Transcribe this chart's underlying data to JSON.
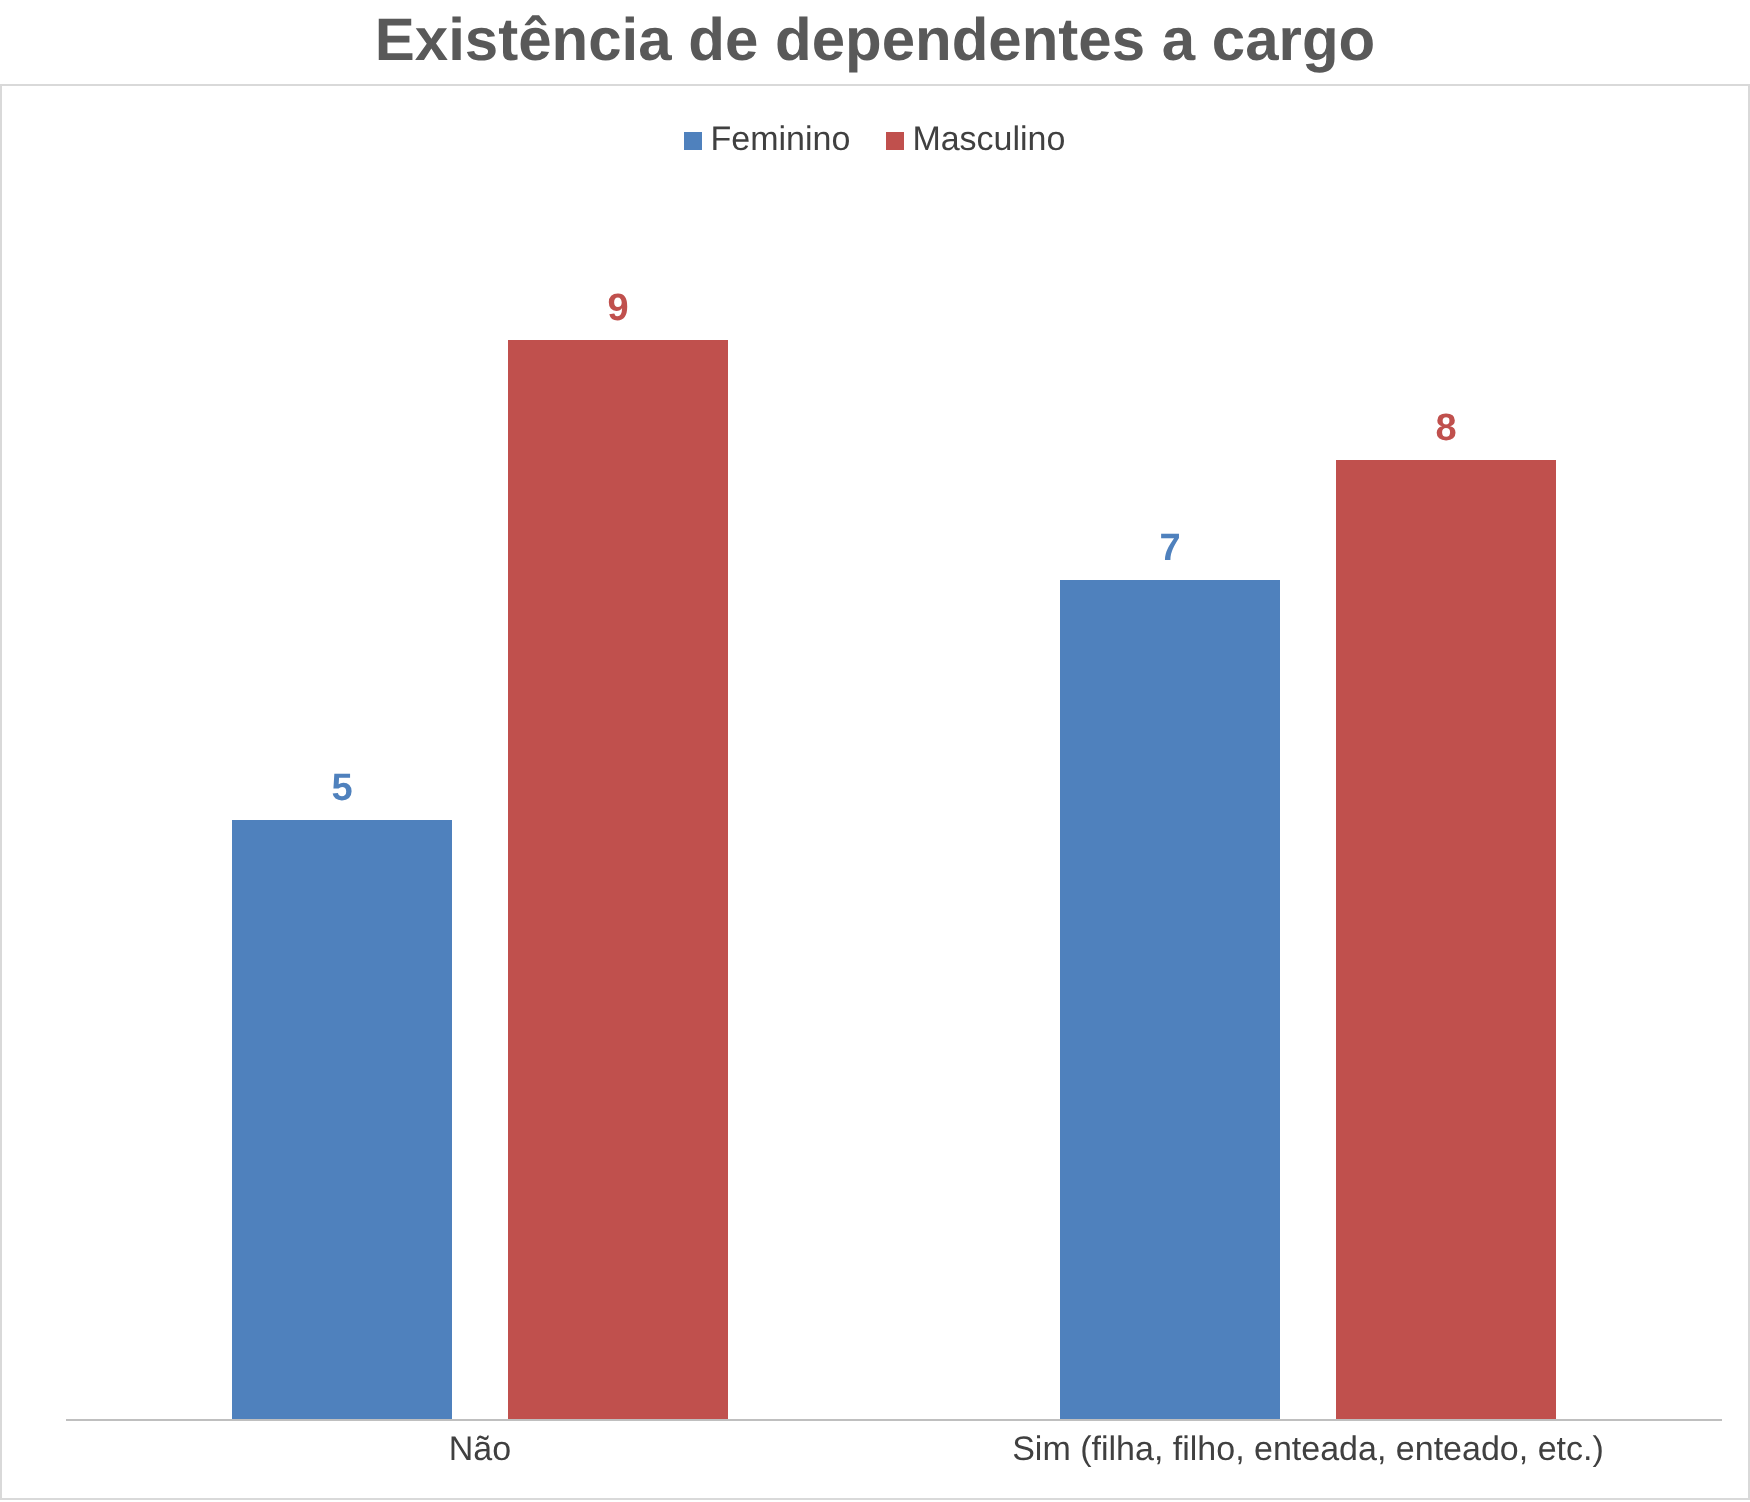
{
  "chart_data": {
    "type": "bar",
    "title": "Existência de dependentes a cargo",
    "categories": [
      "Não",
      "Sim (filha, filho, enteada, enteado, etc.)"
    ],
    "series": [
      {
        "name": "Feminino",
        "color": "#4f81bd",
        "values": [
          5,
          7
        ]
      },
      {
        "name": "Masculino",
        "color": "#c0504d",
        "values": [
          9,
          8
        ]
      }
    ],
    "tick_labels": "x",
    "data_labels": true,
    "legend": "top",
    "grid": false
  }
}
